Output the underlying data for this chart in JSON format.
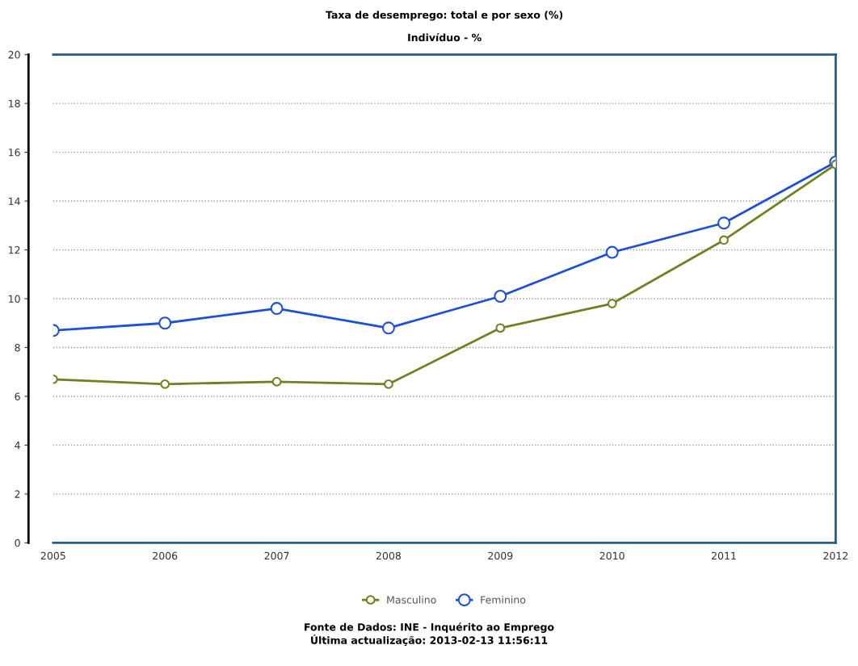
{
  "chart_data": {
    "type": "line",
    "title": "Taxa de desemprego: total e por sexo (%)",
    "subtitle": "Indivíduo - %",
    "categories": [
      "2005",
      "2006",
      "2007",
      "2008",
      "2009",
      "2010",
      "2011",
      "2012"
    ],
    "series": [
      {
        "name": "Masculino",
        "color": "#6b8421",
        "values": [
          6.7,
          6.5,
          6.6,
          6.5,
          8.8,
          9.8,
          12.4,
          15.5
        ]
      },
      {
        "name": "Feminino",
        "color": "#1e4fd8",
        "values": [
          8.7,
          9.0,
          9.6,
          8.8,
          10.1,
          11.9,
          13.1,
          15.6
        ]
      }
    ],
    "ylim": [
      0,
      20
    ],
    "yticks": [
      0,
      2,
      4,
      6,
      8,
      10,
      12,
      14,
      16,
      18,
      20
    ],
    "grid": "y",
    "legend": "bottom",
    "marker": "circle",
    "line_style": "solid",
    "annotations": [
      "Fonte de Dados: INE - Inquérito ao Emprego",
      "Última actualização: 2013-02-13 11:56:11"
    ]
  }
}
